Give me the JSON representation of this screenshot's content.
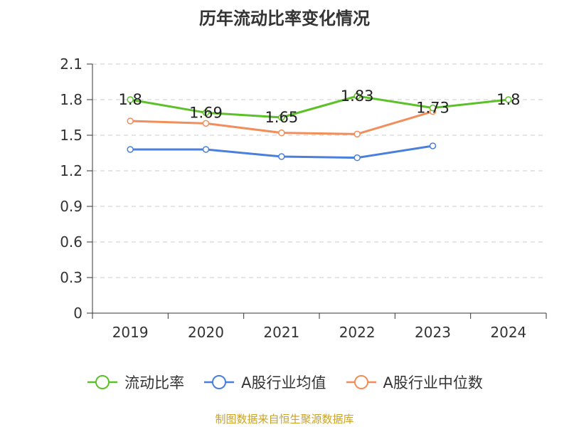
{
  "chart_data": {
    "type": "line",
    "title": "历年流动比率变化情况",
    "xlabel": "",
    "ylabel": "",
    "categories": [
      "2019",
      "2020",
      "2021",
      "2022",
      "2023",
      "2024"
    ],
    "ylim": [
      0,
      2.1
    ],
    "yticks": [
      "0",
      "0.3",
      "0.6",
      "0.9",
      "1.2",
      "1.5",
      "1.8",
      "2.1"
    ],
    "grid": true,
    "legend_position": "bottom",
    "series": [
      {
        "name": "流动比率",
        "color": "#5cc129",
        "values": [
          1.8,
          1.69,
          1.65,
          1.83,
          1.73,
          1.8
        ],
        "labels": [
          "1.8",
          "1.69",
          "1.65",
          "1.83",
          "1.73",
          "1.8"
        ]
      },
      {
        "name": "A股行业均值",
        "color": "#4a7fdb",
        "values": [
          1.38,
          1.38,
          1.32,
          1.31,
          1.41,
          null
        ]
      },
      {
        "name": "A股行业中位数",
        "color": "#f28e5b",
        "values": [
          1.62,
          1.6,
          1.52,
          1.51,
          1.7,
          null
        ]
      }
    ]
  },
  "source_note": "制图数据来自恒生聚源数据库"
}
